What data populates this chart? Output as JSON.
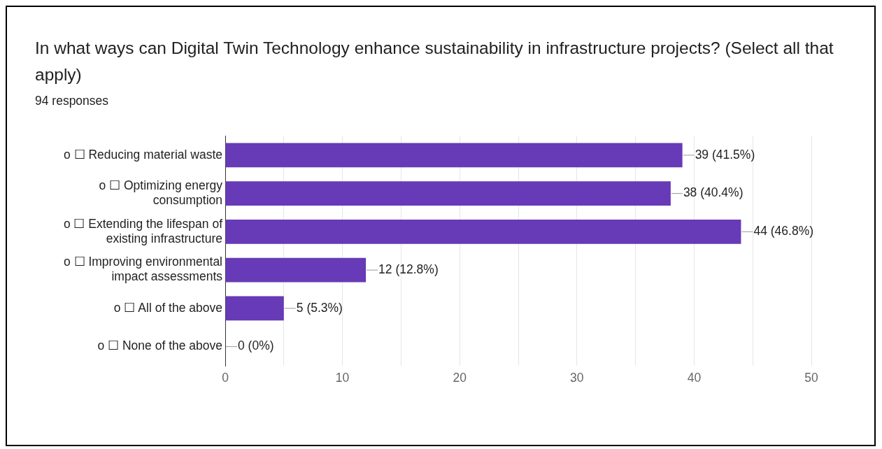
{
  "chart_data": {
    "type": "bar",
    "orientation": "horizontal",
    "title": "In what ways can Digital Twin Technology enhance sustainability in infrastructure projects? (Select all that apply)",
    "subtitle": "94 responses",
    "categories": [
      "o ☐ Reducing material waste",
      "o ☐ Optimizing energy consumption",
      "o ☐ Extending the lifespan of existing infrastructure",
      "o ☐ Improving environmental impact assessments",
      "o ☐ All of the above",
      "o ☐ None of the above"
    ],
    "values": [
      39,
      38,
      44,
      12,
      5,
      0
    ],
    "value_labels": [
      "39 (41.5%)",
      "38 (40.4%)",
      "44 (46.8%)",
      "12 (12.8%)",
      "5 (5.3%)",
      "0 (0%)"
    ],
    "color": "#673ab7",
    "xlim": [
      0,
      50
    ],
    "xticks": [
      0,
      {
        "value": 5,
        "label": null
      },
      10,
      {
        "value": 15,
        "label": null
      },
      20,
      {
        "value": 25,
        "label": null
      },
      30,
      {
        "value": 35,
        "label": null
      },
      40,
      {
        "value": 45,
        "label": null
      },
      50
    ],
    "grid": "x",
    "legend": false
  }
}
